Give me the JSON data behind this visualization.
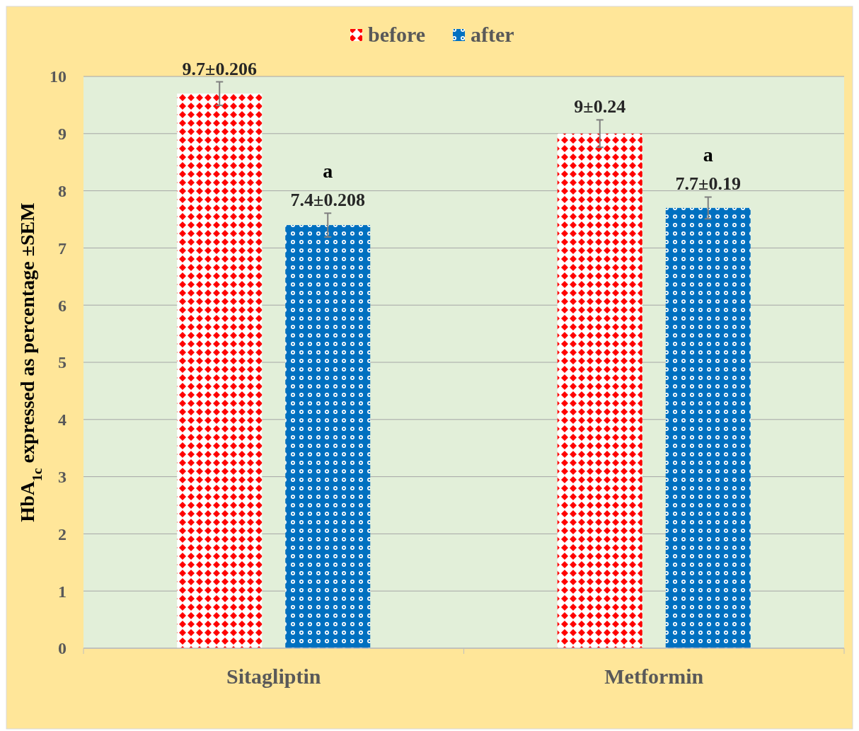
{
  "chart_data": {
    "type": "bar",
    "ylabel": "HbA$_{1c}$ expressed as percentage ±SEM",
    "categories": [
      "Sitagliptin",
      "Metformin"
    ],
    "series": [
      {
        "name": "before",
        "color": "#ff0000",
        "values": [
          9.7,
          9
        ],
        "errors": [
          0.206,
          0.24
        ],
        "value_labels": [
          "9.7±0.206",
          "9±0.24"
        ]
      },
      {
        "name": "after",
        "color": "#0070c0",
        "values": [
          7.4,
          7.7
        ],
        "errors": [
          0.208,
          0.19
        ],
        "value_labels": [
          "7.4±0.208",
          "7.7±0.19"
        ]
      }
    ],
    "annotations": [
      "a",
      "a"
    ],
    "ylim": [
      0,
      10
    ],
    "yticks": [
      0,
      1,
      2,
      3,
      4,
      5,
      6,
      7,
      8,
      9,
      10
    ],
    "grid": "y",
    "legend": "top"
  }
}
